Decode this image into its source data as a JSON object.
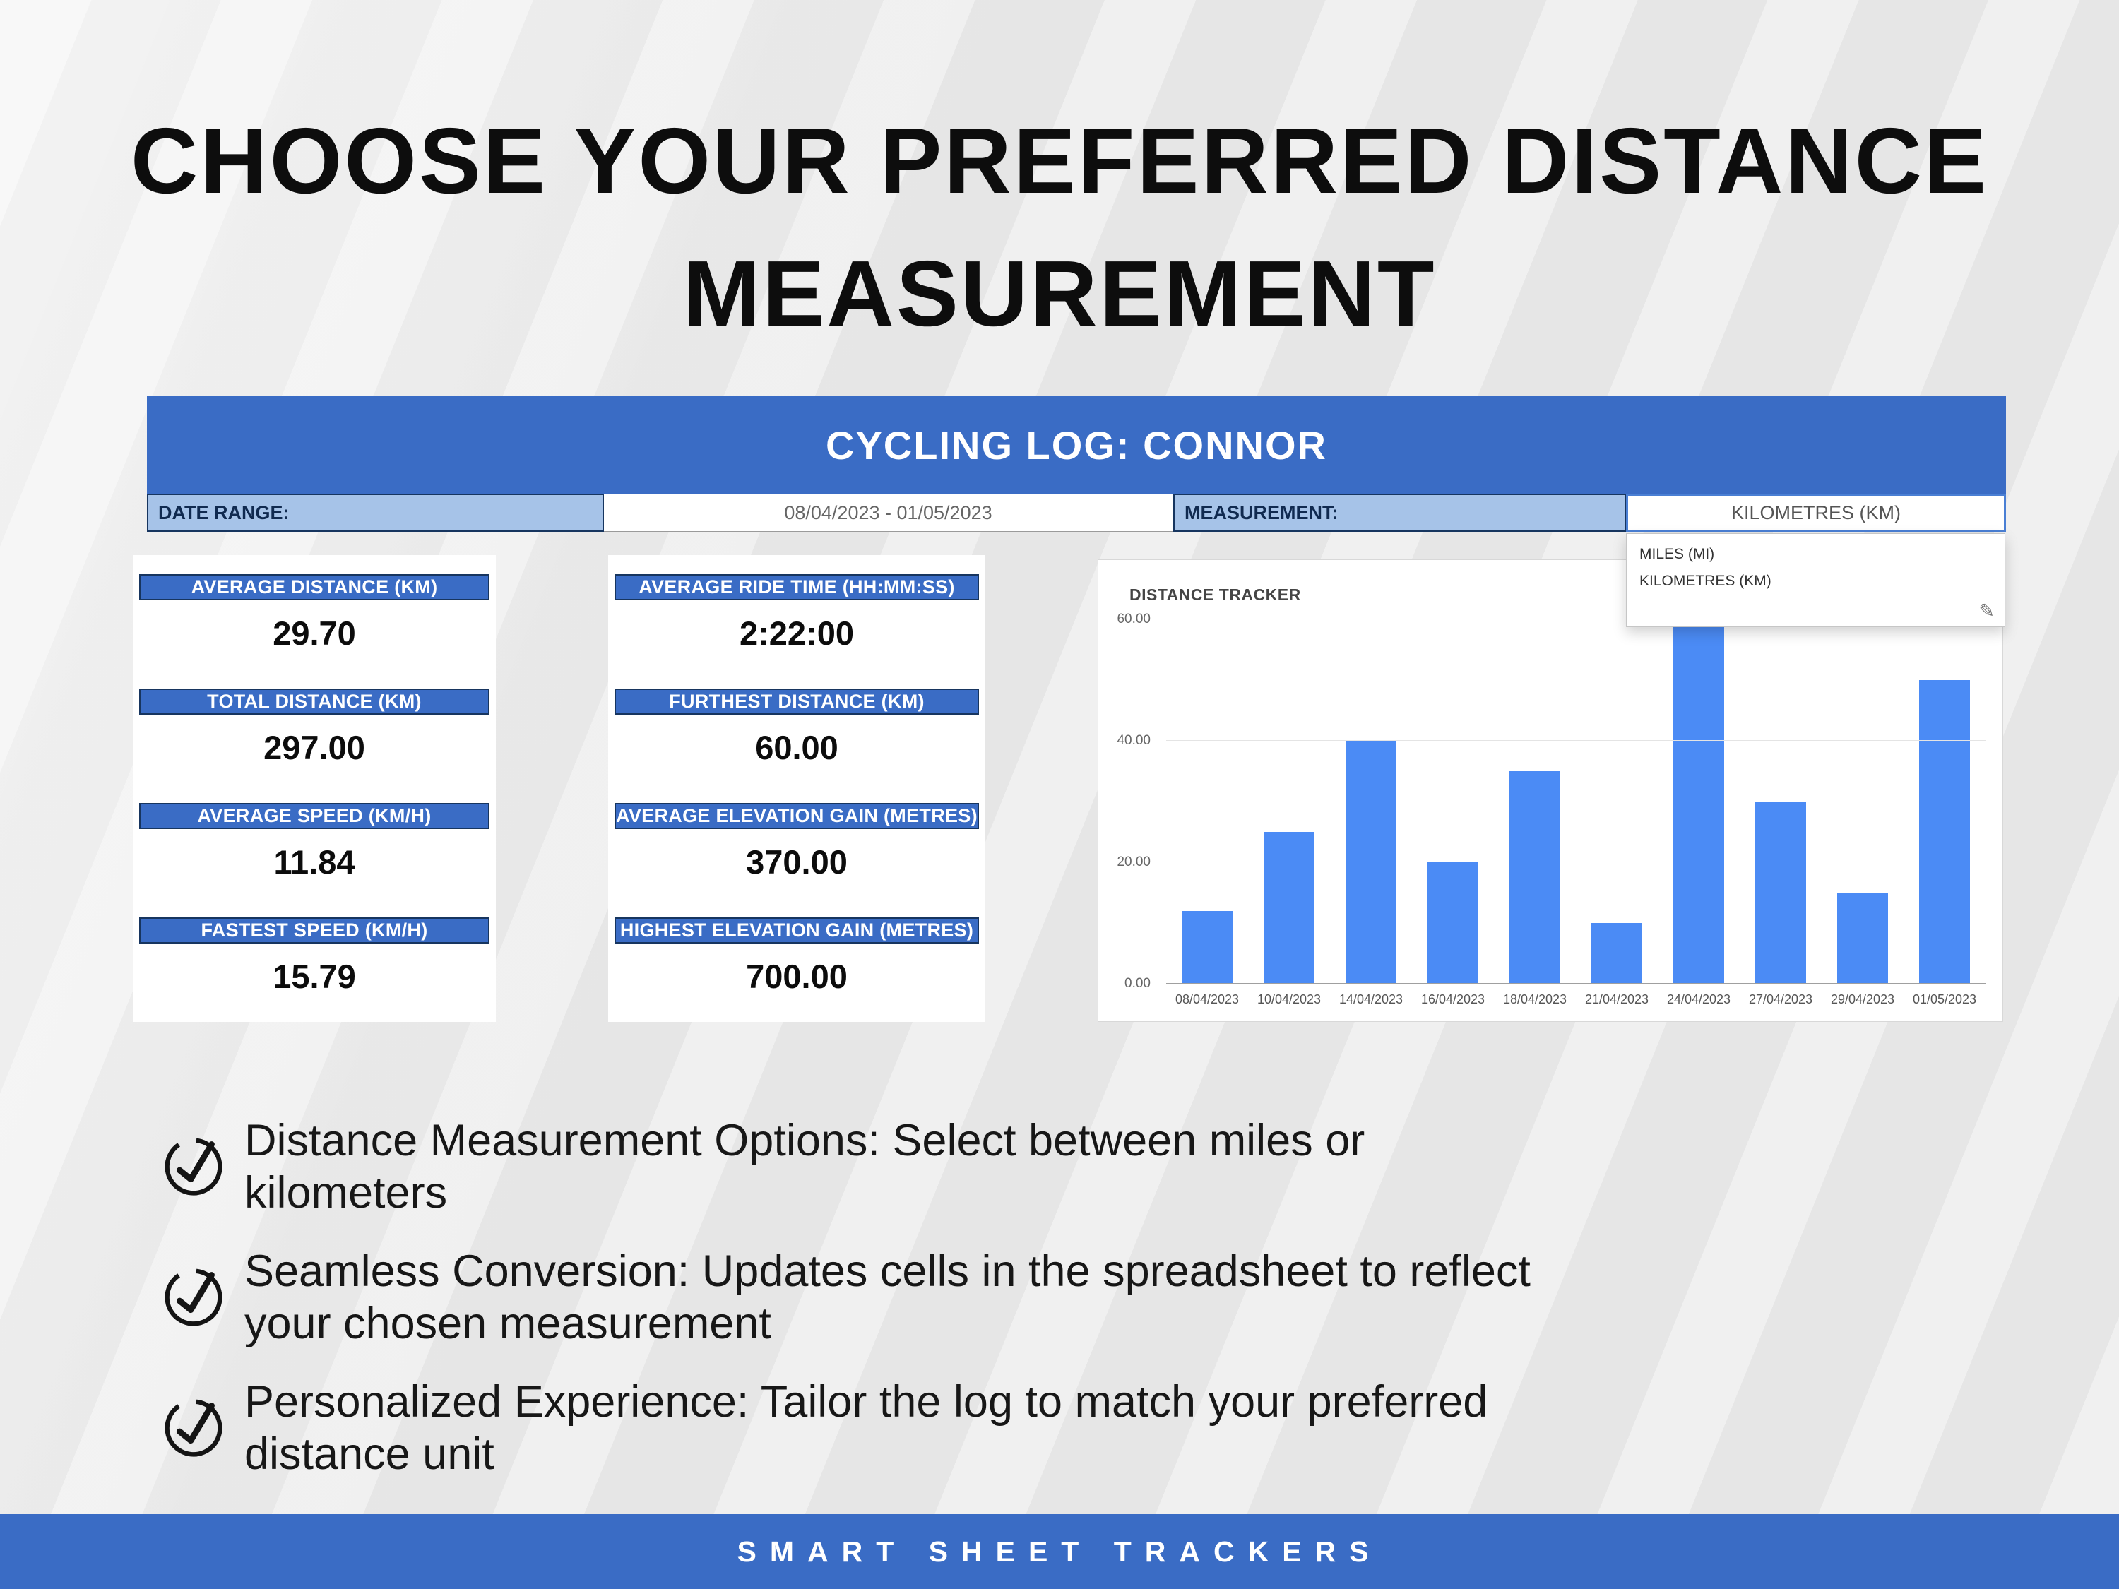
{
  "title": {
    "line1": "CHOOSE YOUR PREFERRED DISTANCE",
    "line2": "MEASUREMENT"
  },
  "colors": {
    "primary_blue": "#3a6cc5",
    "light_blue_cell": "#a6c3e8",
    "bar_blue": "#4b8bf5"
  },
  "spreadsheet": {
    "title": "CYCLING LOG: CONNOR",
    "toolbar": {
      "date_range_label": "DATE RANGE:",
      "date_range_value": "08/04/2023 - 01/05/2023",
      "measurement_label": "MEASUREMENT:",
      "measurement_value": "KILOMETRES (KM)"
    },
    "measurement_dropdown": {
      "options": [
        "MILES (MI)",
        "KILOMETRES (KM)"
      ],
      "edit_icon": "✎"
    },
    "stats_left": [
      {
        "label": "AVERAGE DISTANCE (KM)",
        "value": "29.70"
      },
      {
        "label": "TOTAL DISTANCE (KM)",
        "value": "297.00"
      },
      {
        "label": "AVERAGE SPEED (KM/H)",
        "value": "11.84"
      },
      {
        "label": "FASTEST SPEED (KM/H)",
        "value": "15.79"
      }
    ],
    "stats_right": [
      {
        "label": "AVERAGE RIDE TIME (HH:MM:SS)",
        "value": "2:22:00"
      },
      {
        "label": "FURTHEST DISTANCE (KM)",
        "value": "60.00"
      },
      {
        "label": "AVERAGE ELEVATION GAIN (METRES)",
        "value": "370.00"
      },
      {
        "label": "HIGHEST ELEVATION GAIN (METRES)",
        "value": "700.00"
      }
    ]
  },
  "chart_data": {
    "type": "bar",
    "title": "DISTANCE TRACKER",
    "categories": [
      "08/04/2023",
      "10/04/2023",
      "14/04/2023",
      "16/04/2023",
      "18/04/2023",
      "21/04/2023",
      "24/04/2023",
      "27/04/2023",
      "29/04/2023",
      "01/05/2023"
    ],
    "values": [
      12,
      25,
      40,
      20,
      35,
      10,
      60,
      30,
      15,
      50
    ],
    "xlabel": "",
    "ylabel": "",
    "ylim": [
      0,
      60
    ],
    "ytick_labels": [
      "0.00",
      "20.00",
      "40.00",
      "60.00"
    ],
    "grid": true,
    "legend": false,
    "bar_color": "#4b8bf5"
  },
  "bullets": [
    {
      "line1": "Distance Measurement Options: Select between miles or",
      "line2": "kilometers"
    },
    {
      "line1": "Seamless Conversion: Updates cells in the spreadsheet to reflect",
      "line2": "your chosen measurement"
    },
    {
      "line1": "Personalized Experience: Tailor the log to match your preferred",
      "line2": "distance unit"
    }
  ],
  "footer": {
    "text": "SMART SHEET TRACKERS"
  }
}
